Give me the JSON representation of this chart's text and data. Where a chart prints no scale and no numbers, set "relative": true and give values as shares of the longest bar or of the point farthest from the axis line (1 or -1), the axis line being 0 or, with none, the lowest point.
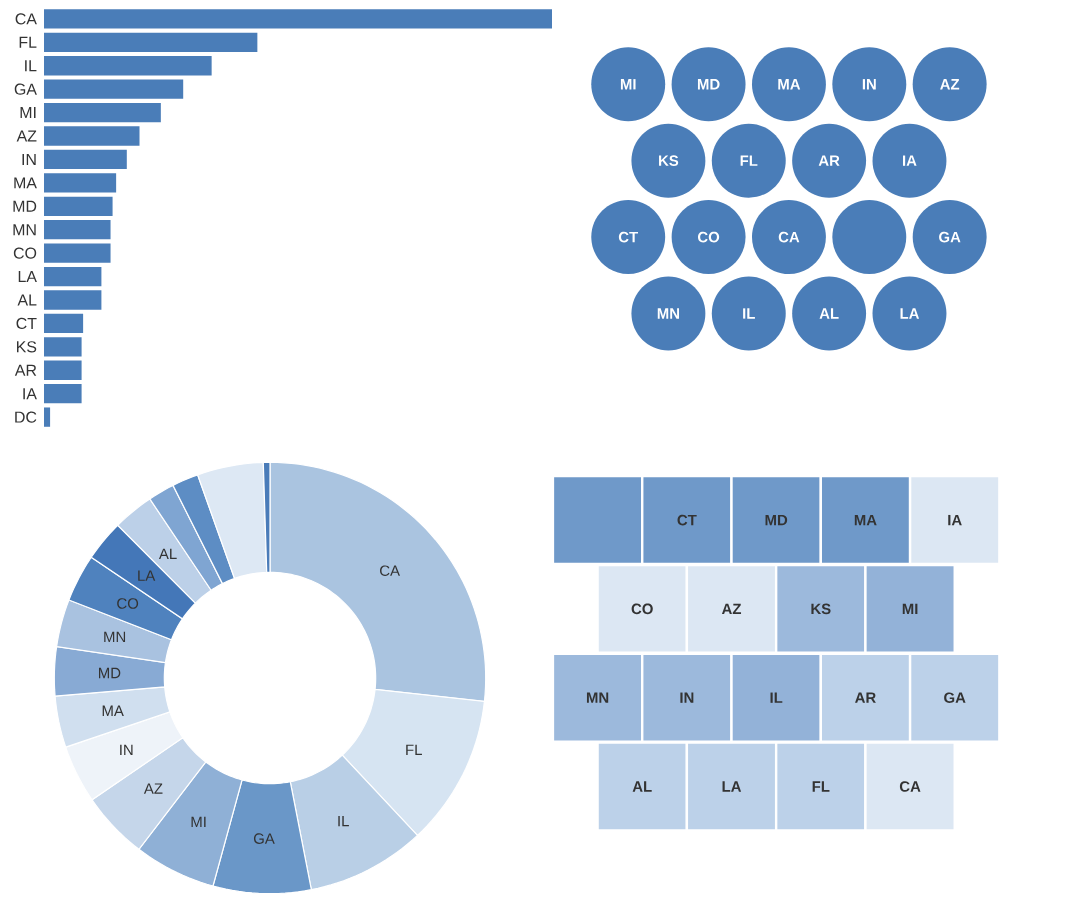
{
  "chart_data": [
    {
      "type": "bar",
      "orientation": "horizontal",
      "relative": true,
      "color": "#4a7db8",
      "categories": [
        "CA",
        "FL",
        "IL",
        "GA",
        "MI",
        "AZ",
        "IN",
        "MA",
        "MD",
        "MN",
        "CO",
        "LA",
        "AL",
        "CT",
        "KS",
        "AR",
        "IA",
        "DC"
      ],
      "values": [
        1,
        0.42,
        0.33,
        0.274,
        0.23,
        0.188,
        0.163,
        0.142,
        0.135,
        0.131,
        0.131,
        0.113,
        0.113,
        0.077,
        0.074,
        0.074,
        0.074,
        0.012
      ]
    },
    {
      "type": "other",
      "color": "#4a7db8",
      "categories": [
        "MI",
        "MD",
        "MA",
        "IN",
        "AZ",
        "KS",
        "FL",
        "AR",
        "IA",
        "CT",
        "CO",
        "CA",
        null,
        "GA",
        "MN",
        "IL",
        "AL",
        "LA"
      ]
    },
    {
      "type": "donut",
      "categories": [
        "CA",
        "FL",
        "IL",
        "GA",
        "MI",
        "AZ",
        "IN",
        "MA",
        "MD",
        "MN",
        "CO",
        "LA",
        "AL",
        null,
        null,
        null,
        null
      ],
      "values": [
        27,
        11.4,
        9,
        7.4,
        6.2,
        5.1,
        4.4,
        3.9,
        3.7,
        3.6,
        3.6,
        3.1,
        3.1,
        2,
        2,
        5,
        0.5
      ],
      "colors": [
        "#aac4e0",
        "#d6e4f2",
        "#b9cfe6",
        "#6a97c8",
        "#8fb0d6",
        "#c5d6ea",
        "#eef3f9",
        "#d0dfef",
        "#88aad4",
        "#a9c2e0",
        "#4f82be",
        "#4477b8",
        "#bcd0e8",
        "#7fa5d2",
        "#5d8dc4",
        "#dde8f4",
        "#4a7cb9"
      ]
    },
    {
      "type": "other",
      "categories": [
        null,
        "CT",
        "MD",
        "MA",
        "IA",
        "CO",
        "AZ",
        "KS",
        "MI",
        "MN",
        "IN",
        "IL",
        "AR",
        "GA",
        "AL",
        "LA",
        "FL",
        "CA"
      ],
      "colors": [
        "#6f99c9",
        "#6f99c9",
        "#6f99c9",
        "#6f99c9",
        "#dce7f3",
        "#dce7f3",
        "#dce7f3",
        "#9cb9dc",
        "#93b2d8",
        "#9cb9dc",
        "#9cb9dc",
        "#93b2d8",
        "#bcd1e9",
        "#bcd1e9",
        "#bcd1e9",
        "#bcd1e9",
        "#bcd1e9",
        "#dce7f3"
      ]
    }
  ]
}
